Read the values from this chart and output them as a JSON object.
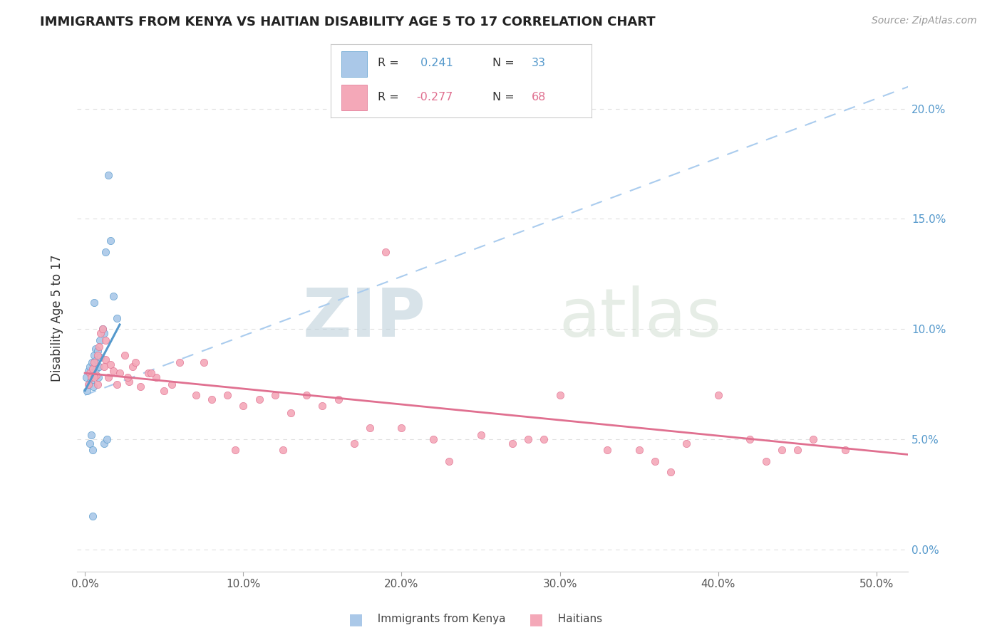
{
  "title": "IMMIGRANTS FROM KENYA VS HAITIAN DISABILITY AGE 5 TO 17 CORRELATION CHART",
  "source": "Source: ZipAtlas.com",
  "ylabel": "Disability Age 5 to 17",
  "xlabel_ticks": [
    0.0,
    10.0,
    20.0,
    30.0,
    40.0,
    50.0
  ],
  "ylabel_ticks": [
    0.0,
    5.0,
    10.0,
    15.0,
    20.0
  ],
  "xlim": [
    -0.5,
    52.0
  ],
  "ylim": [
    -1.0,
    22.0
  ],
  "kenya_R": 0.241,
  "kenya_N": 33,
  "haiti_R": -0.277,
  "haiti_N": 68,
  "kenya_color": "#aac8e8",
  "haiti_color": "#f4a8b8",
  "kenya_trend_color": "#5599cc",
  "haiti_trend_color": "#e07090",
  "kenya_line_color": "#5599cc",
  "haiti_line_color": "#e07090",
  "kenya_scatter_x": [
    0.1,
    0.15,
    0.2,
    0.25,
    0.3,
    0.35,
    0.4,
    0.45,
    0.5,
    0.55,
    0.6,
    0.65,
    0.7,
    0.75,
    0.8,
    0.85,
    0.9,
    0.95,
    1.0,
    1.1,
    1.2,
    1.3,
    1.5,
    1.6,
    1.8,
    2.0,
    0.3,
    0.4,
    0.5,
    1.2,
    1.4,
    0.6,
    0.5
  ],
  "kenya_scatter_y": [
    7.8,
    7.2,
    8.1,
    7.5,
    8.3,
    7.6,
    7.9,
    8.5,
    8.0,
    7.4,
    8.8,
    9.1,
    8.2,
    8.6,
    9.0,
    7.8,
    8.3,
    9.5,
    8.7,
    10.0,
    9.8,
    13.5,
    17.0,
    14.0,
    11.5,
    10.5,
    4.8,
    5.2,
    4.5,
    4.8,
    5.0,
    11.2,
    1.5
  ],
  "haiti_scatter_x": [
    0.2,
    0.3,
    0.4,
    0.5,
    0.6,
    0.7,
    0.8,
    0.9,
    1.0,
    1.1,
    1.2,
    1.3,
    1.5,
    1.6,
    1.8,
    2.0,
    2.2,
    2.5,
    2.8,
    3.0,
    3.5,
    4.0,
    4.5,
    5.0,
    6.0,
    7.0,
    8.0,
    9.0,
    10.0,
    11.0,
    12.0,
    13.0,
    14.0,
    15.0,
    16.0,
    18.0,
    20.0,
    22.0,
    25.0,
    28.0,
    30.0,
    33.0,
    35.0,
    37.0,
    40.0,
    42.0,
    44.0,
    46.0,
    3.2,
    4.2,
    5.5,
    7.5,
    9.5,
    12.5,
    17.0,
    23.0,
    19.0,
    27.0,
    29.0,
    36.0,
    38.0,
    43.0,
    45.0,
    48.0,
    1.3,
    2.7,
    0.8,
    0.6
  ],
  "haiti_scatter_y": [
    7.5,
    8.0,
    7.8,
    8.2,
    8.5,
    7.9,
    8.8,
    9.2,
    9.8,
    10.0,
    8.3,
    8.6,
    7.8,
    8.4,
    8.1,
    7.5,
    8.0,
    8.8,
    7.6,
    8.3,
    7.4,
    8.0,
    7.8,
    7.2,
    8.5,
    7.0,
    6.8,
    7.0,
    6.5,
    6.8,
    7.0,
    6.2,
    7.0,
    6.5,
    6.8,
    5.5,
    5.5,
    5.0,
    5.2,
    5.0,
    7.0,
    4.5,
    4.5,
    3.5,
    7.0,
    5.0,
    4.5,
    5.0,
    8.5,
    8.0,
    7.5,
    8.5,
    4.5,
    4.5,
    4.8,
    4.0,
    13.5,
    4.8,
    5.0,
    4.0,
    4.8,
    4.0,
    4.5,
    4.5,
    9.5,
    7.8,
    7.5,
    7.8
  ],
  "watermark_zip": "ZIP",
  "watermark_atlas": "atlas",
  "background_color": "#ffffff",
  "grid_color": "#e0e0e0"
}
